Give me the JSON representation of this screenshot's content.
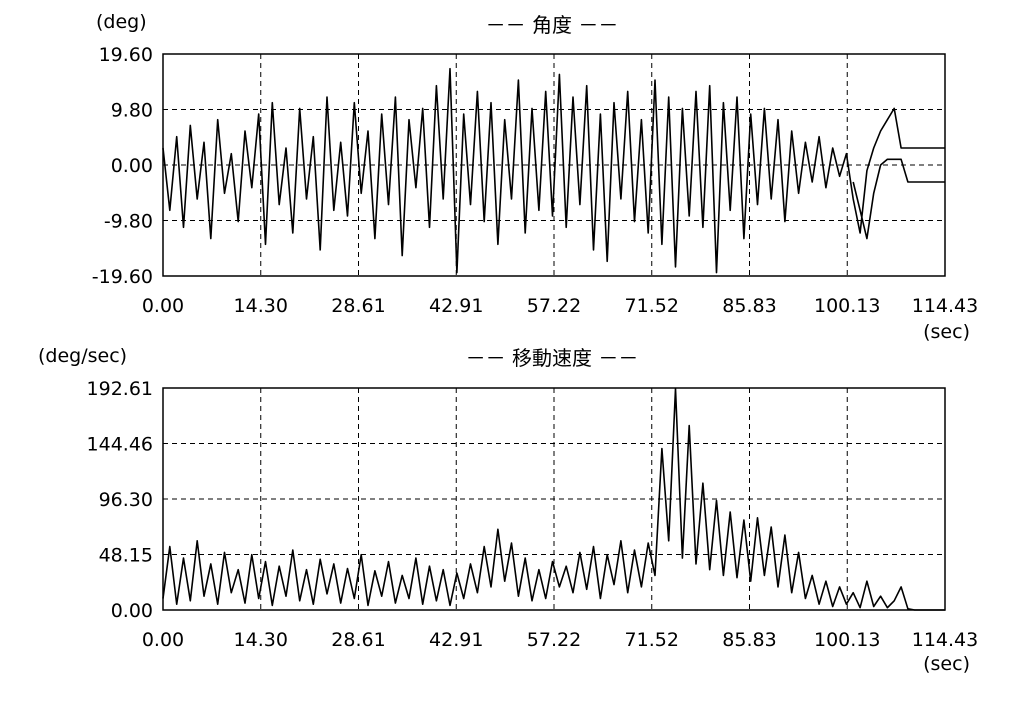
{
  "chart_data": [
    {
      "type": "line",
      "title": "－－ 角度 －－",
      "ylabel": "(deg)",
      "xlabel": "(sec)",
      "xlim": [
        0,
        114.43
      ],
      "ylim": [
        -19.6,
        19.6
      ],
      "x_ticks": [
        "0.00",
        "14.30",
        "28.61",
        "42.91",
        "57.22",
        "71.52",
        "85.83",
        "100.13",
        "114.43"
      ],
      "y_ticks": [
        "19.60",
        "9.80",
        "0.00",
        "-9.80",
        "-19.60"
      ],
      "grid": true,
      "series": [
        {
          "x": [
            0,
            1,
            2,
            3,
            4,
            5,
            6,
            7,
            8,
            9,
            10,
            11,
            12,
            13,
            14,
            15,
            16,
            17,
            18,
            19,
            20,
            21,
            22,
            23,
            24,
            25,
            26,
            27,
            28,
            29,
            30,
            31,
            32,
            33,
            34,
            35,
            36,
            37,
            38,
            39,
            40,
            41,
            42,
            43,
            44,
            45,
            46,
            47,
            48,
            49,
            50,
            51,
            52,
            53,
            54,
            55,
            56,
            57,
            58,
            59,
            60,
            61,
            62,
            63,
            64,
            65,
            66,
            67,
            68,
            69,
            70,
            71,
            72,
            73,
            74,
            75,
            76,
            77,
            78,
            79,
            80,
            81,
            82,
            83,
            84,
            85,
            86,
            87,
            88,
            89,
            90,
            91,
            92,
            93,
            94,
            95,
            96,
            97,
            98,
            99,
            100,
            101,
            102,
            103,
            104,
            105,
            106,
            107,
            108,
            109,
            110,
            111,
            112,
            113,
            114.43
          ],
          "y": [
            3,
            -8,
            5,
            -11,
            7,
            -6,
            4,
            -13,
            8,
            -5,
            2,
            -10,
            6,
            -4,
            9,
            -14,
            11,
            -7,
            3,
            -12,
            10,
            -6,
            5,
            -15,
            12,
            -8,
            4,
            -9,
            11,
            -5,
            6,
            -13,
            9,
            -7,
            12,
            -16,
            8,
            -4,
            10,
            -11,
            14,
            -6,
            17,
            -19,
            9,
            -7,
            13,
            -10,
            11,
            -14,
            8,
            -6,
            15,
            -12,
            10,
            -8,
            13,
            -9,
            16,
            -11,
            12,
            -7,
            14,
            -15,
            9,
            -17,
            11,
            -6,
            13,
            -10,
            8,
            -12,
            15,
            -14,
            12,
            -18,
            10,
            -9,
            13,
            -11,
            14,
            -19,
            11,
            -8,
            12,
            -13,
            9,
            -7,
            10,
            -6,
            8,
            -10,
            6,
            -5,
            4,
            -3,
            5,
            -4,
            3,
            -2,
            2,
            -6,
            -12,
            -1,
            3,
            6,
            8,
            10,
            3,
            3,
            3,
            3,
            3,
            3,
            3
          ]
        },
        {
          "x": [
            101,
            102,
            103,
            104,
            105,
            106,
            107,
            108,
            109,
            110,
            111,
            112,
            113,
            114.43
          ],
          "y": [
            -3,
            -8,
            -13,
            -5,
            0,
            1,
            1,
            1,
            -3,
            -3,
            -3,
            -3,
            -3,
            -3
          ]
        }
      ]
    },
    {
      "type": "line",
      "title": "－－ 移動速度 －－",
      "ylabel": "(deg/sec)",
      "xlabel": "(sec)",
      "xlim": [
        0,
        114.43
      ],
      "ylim": [
        0,
        192.61
      ],
      "x_ticks": [
        "0.00",
        "14.30",
        "28.61",
        "42.91",
        "57.22",
        "71.52",
        "85.83",
        "100.13",
        "114.43"
      ],
      "y_ticks": [
        "192.61",
        "144.46",
        "96.30",
        "48.15",
        "0.00"
      ],
      "grid": true,
      "series": [
        {
          "x": [
            0,
            1,
            2,
            3,
            4,
            5,
            6,
            7,
            8,
            9,
            10,
            11,
            12,
            13,
            14,
            15,
            16,
            17,
            18,
            19,
            20,
            21,
            22,
            23,
            24,
            25,
            26,
            27,
            28,
            29,
            30,
            31,
            32,
            33,
            34,
            35,
            36,
            37,
            38,
            39,
            40,
            41,
            42,
            43,
            44,
            45,
            46,
            47,
            48,
            49,
            50,
            51,
            52,
            53,
            54,
            55,
            56,
            57,
            58,
            59,
            60,
            61,
            62,
            63,
            64,
            65,
            66,
            67,
            68,
            69,
            70,
            71,
            72,
            73,
            74,
            75,
            76,
            77,
            78,
            79,
            80,
            81,
            82,
            83,
            84,
            85,
            86,
            87,
            88,
            89,
            90,
            91,
            92,
            93,
            94,
            95,
            96,
            97,
            98,
            99,
            100,
            101,
            102,
            103,
            104,
            105,
            106,
            107,
            108,
            109,
            110,
            111,
            112,
            113,
            114.43
          ],
          "y": [
            10,
            55,
            5,
            45,
            8,
            60,
            12,
            40,
            5,
            50,
            15,
            35,
            6,
            48,
            10,
            42,
            4,
            38,
            12,
            52,
            8,
            35,
            5,
            44,
            14,
            40,
            6,
            36,
            10,
            48,
            4,
            34,
            12,
            42,
            6,
            30,
            10,
            45,
            5,
            38,
            8,
            35,
            4,
            32,
            10,
            40,
            15,
            55,
            20,
            70,
            25,
            58,
            12,
            45,
            8,
            35,
            10,
            42,
            20,
            38,
            15,
            50,
            18,
            55,
            10,
            48,
            22,
            60,
            15,
            52,
            20,
            58,
            30,
            140,
            60,
            192,
            45,
            160,
            40,
            110,
            35,
            95,
            30,
            85,
            28,
            78,
            25,
            80,
            30,
            72,
            20,
            65,
            15,
            50,
            10,
            30,
            5,
            25,
            3,
            20,
            5,
            15,
            2,
            25,
            3,
            12,
            2,
            8,
            20,
            1,
            0,
            0,
            0,
            0,
            0
          ]
        }
      ]
    }
  ]
}
